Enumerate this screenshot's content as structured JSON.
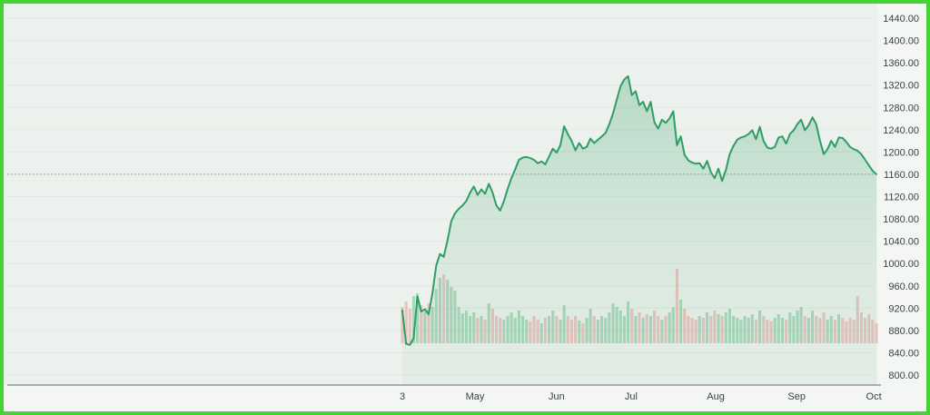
{
  "app": {
    "description": "stock price area chart with volume"
  },
  "frame": {
    "border_color": "#42d434",
    "chart_bg": "#edf1ed",
    "panel_bg": "#f4f6f4"
  },
  "chart_data": {
    "type": "area",
    "title": "",
    "xlabel": "",
    "ylabel": "",
    "ylim": [
      784,
      1460
    ],
    "grid": "faint-horizontal",
    "legend": "none",
    "x_axis": {
      "ticks": [
        {
          "label": "3",
          "index": 0
        },
        {
          "label": "May",
          "index": 19.3
        },
        {
          "label": "Jun",
          "index": 41.0
        },
        {
          "label": "Jul",
          "index": 60.8
        },
        {
          "label": "Aug",
          "index": 83.3
        },
        {
          "label": "Sep",
          "index": 104.8
        },
        {
          "label": "Oct",
          "index": 125.3
        }
      ]
    },
    "y_axis": {
      "tick_values": [
        1440,
        1400,
        1360,
        1320,
        1280,
        1240,
        1200,
        1160,
        1120,
        1080,
        1040,
        1000,
        960,
        920,
        880,
        840,
        800
      ],
      "tick_labels": [
        "1440.00",
        "1400.00",
        "1360.00",
        "1320.00",
        "1280.00",
        "1240.00",
        "1200.00",
        "1160.00",
        "1120.00",
        "1080.00",
        "1040.00",
        "1000.00",
        "960.00",
        "920.00",
        "880.00",
        "840.00",
        "800.00"
      ]
    },
    "last_price": 1160,
    "series": [
      {
        "name": "price",
        "values": [
          916,
          856,
          854,
          866,
          941,
          914,
          918,
          909,
          946,
          996,
          1017,
          1012,
          1041,
          1076,
          1090,
          1098,
          1104,
          1112,
          1127,
          1138,
          1123,
          1133,
          1125,
          1143,
          1127,
          1104,
          1095,
          1112,
          1134,
          1153,
          1169,
          1186,
          1190,
          1191,
          1189,
          1186,
          1180,
          1183,
          1178,
          1192,
          1206,
          1199,
          1212,
          1246,
          1232,
          1220,
          1203,
          1216,
          1206,
          1209,
          1224,
          1216,
          1222,
          1228,
          1234,
          1250,
          1269,
          1294,
          1318,
          1330,
          1336,
          1302,
          1309,
          1284,
          1290,
          1273,
          1290,
          1253,
          1242,
          1258,
          1252,
          1260,
          1273,
          1212,
          1228,
          1195,
          1185,
          1181,
          1179,
          1180,
          1170,
          1184,
          1164,
          1153,
          1170,
          1148,
          1168,
          1196,
          1211,
          1222,
          1226,
          1228,
          1232,
          1239,
          1223,
          1245,
          1220,
          1208,
          1206,
          1209,
          1226,
          1228,
          1215,
          1232,
          1239,
          1250,
          1258,
          1239,
          1248,
          1262,
          1250,
          1220,
          1196,
          1205,
          1220,
          1209,
          1226,
          1225,
          1218,
          1209,
          1205,
          1202,
          1196,
          1186,
          1176,
          1166,
          1160
        ]
      }
    ],
    "volume": {
      "values": [
        40,
        46,
        38,
        52,
        55,
        42,
        35,
        44,
        40,
        60,
        72,
        76,
        70,
        62,
        58,
        40,
        33,
        36,
        30,
        34,
        28,
        30,
        26,
        44,
        38,
        30,
        28,
        26,
        30,
        34,
        28,
        36,
        30,
        26,
        24,
        30,
        26,
        22,
        28,
        30,
        36,
        30,
        26,
        42,
        30,
        26,
        30,
        25,
        22,
        28,
        38,
        30,
        26,
        30,
        28,
        34,
        44,
        40,
        36,
        30,
        46,
        38,
        30,
        34,
        28,
        32,
        30,
        36,
        30,
        26,
        30,
        34,
        40,
        82,
        48,
        38,
        30,
        28,
        26,
        30,
        28,
        34,
        30,
        36,
        32,
        30,
        34,
        38,
        30,
        28,
        26,
        30,
        28,
        32,
        26,
        36,
        30,
        26,
        24,
        28,
        32,
        28,
        26,
        34,
        30,
        36,
        40,
        30,
        28,
        36,
        30,
        28,
        34,
        26,
        30,
        26,
        32,
        28,
        24,
        28,
        26,
        52,
        34,
        28,
        32,
        26,
        22
      ]
    },
    "colors": {
      "line": "#2f9e63",
      "area_top": "rgba(47,158,99,0.28)",
      "area_bottom": "rgba(47,158,99,0.05)",
      "volume_up": "rgba(96,181,128,0.45)",
      "volume_down": "rgba(214,138,128,0.42)",
      "grid": "rgba(90,120,100,0.07)",
      "last_price_line": "#78a38e",
      "axis_text": "#3c4247",
      "axis_line": "#8e98a2"
    }
  }
}
